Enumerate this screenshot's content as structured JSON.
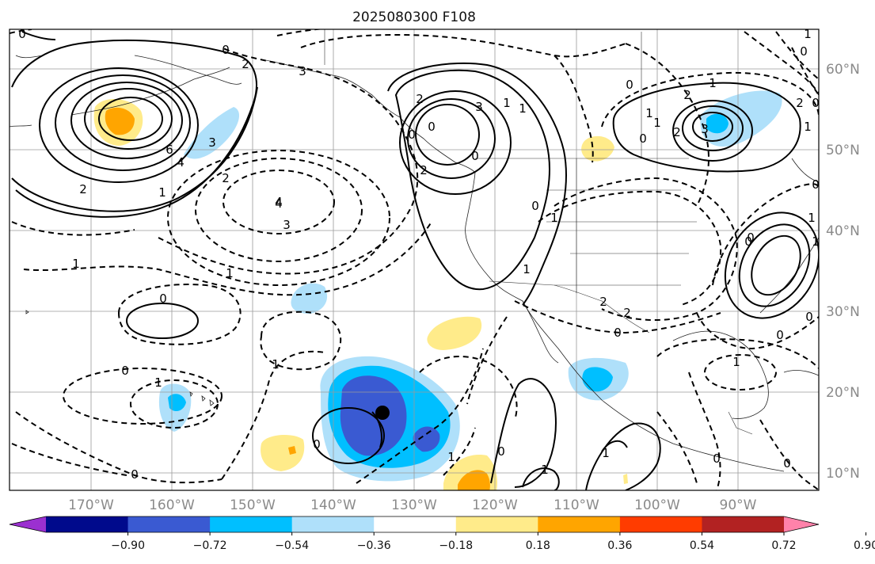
{
  "title": "2025080300 F108",
  "map": {
    "lon_labels": [
      "170°W",
      "160°W",
      "150°W",
      "140°W",
      "130°W",
      "120°W",
      "110°W",
      "100°W",
      "90°W"
    ],
    "lat_labels": [
      "60°N",
      "50°N",
      "40°N",
      "30°N",
      "20°N",
      "10°N"
    ]
  },
  "colorbar": {
    "colors": [
      "#9b30d0",
      "#000a8c",
      "#3a5ad2",
      "#00bfff",
      "#afe0fa",
      "#ffffff",
      "#ffeb8a",
      "#ffa500",
      "#ff3c00",
      "#b22222",
      "#ff82aa"
    ],
    "tick_labels": [
      "−0.90",
      "−0.72",
      "−0.54",
      "−0.36",
      "−0.18",
      "0.18",
      "0.36",
      "0.54",
      "0.72",
      "0.90"
    ]
  },
  "contour_labels": [
    "0",
    "2",
    "1",
    "3",
    "2",
    "4",
    "3",
    "6",
    "4",
    "2",
    "1",
    "1",
    "0",
    "1",
    "3",
    "4",
    "3",
    "2",
    "1",
    "0",
    "2",
    "0",
    "0",
    "0",
    "1",
    "0",
    "1",
    "1",
    "0",
    "1",
    "0",
    "0",
    "1",
    "2",
    "2",
    "0",
    "1",
    "0",
    "1",
    "0",
    "0",
    "0",
    "0",
    "1",
    "0",
    "0",
    "1",
    "0",
    "1",
    "0",
    "0",
    "1",
    "1",
    "2",
    "1",
    "2",
    "3",
    "1",
    "0",
    "2",
    "1",
    "0"
  ]
}
